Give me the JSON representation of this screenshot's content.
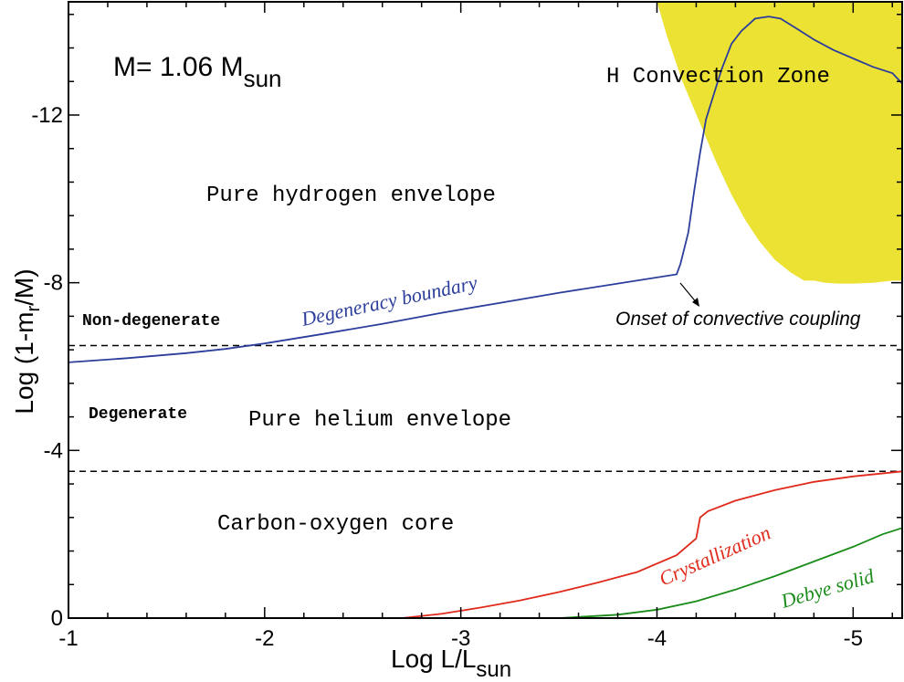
{
  "chart_data": {
    "type": "line",
    "mass_label": "M= 1.06 M",
    "mass_sub": "sun",
    "xlabel_main": "Log L/L",
    "xlabel_sub": "sun",
    "ylabel_main": "Log (1-m",
    "ylabel_sub": "r",
    "ylabel_end": "/M)",
    "xlim": [
      -1,
      -5.25
    ],
    "ylim": [
      0,
      -14.7
    ],
    "x_ticks": [
      -1,
      -2,
      -3,
      -4,
      -5
    ],
    "x_tick_labels": [
      "-1",
      "-2",
      "-3",
      "-4",
      "-5"
    ],
    "y_ticks": [
      0,
      -4,
      -8,
      -12
    ],
    "y_tick_labels": [
      "0",
      "-4",
      "-8",
      "-12"
    ],
    "colors": {
      "convection": "#ece234",
      "degeneracy": "#2c3e9c",
      "crystallization": "#e02a1c",
      "debye": "#1a8c1a",
      "reference": "#000000"
    },
    "reference_lines": [
      -6.5,
      -3.5
    ],
    "regions": {
      "convection_zone": "H Convection Zone",
      "hydrogen": "Pure hydrogen envelope",
      "helium": "Pure helium envelope",
      "core": "Carbon-oxygen core",
      "nondegenerate": "Non-degenerate",
      "degenerate": "Degenerate"
    },
    "annotations": {
      "onset": "Onset of convective coupling"
    },
    "convection_zone": {
      "upper_left": [
        [
          -4.0,
          -14.7
        ],
        [
          -4.05,
          -13.9
        ],
        [
          -4.13,
          -12.8
        ],
        [
          -4.22,
          -11.8
        ],
        [
          -4.3,
          -10.9
        ],
        [
          -4.38,
          -10.1
        ],
        [
          -4.45,
          -9.5
        ],
        [
          -4.52,
          -9.0
        ],
        [
          -4.6,
          -8.55
        ],
        [
          -4.68,
          -8.25
        ],
        [
          -4.75,
          -8.05
        ],
        [
          -4.8,
          -8.05
        ]
      ],
      "lower_boundary": [
        [
          -4.8,
          -8.05
        ],
        [
          -4.86,
          -8.0
        ],
        [
          -4.92,
          -7.98
        ],
        [
          -5.0,
          -7.98
        ],
        [
          -5.1,
          -8.0
        ],
        [
          -5.2,
          -8.05
        ],
        [
          -5.25,
          -8.05
        ]
      ]
    },
    "series": [
      {
        "name": "Degeneracy boundary",
        "points": [
          [
            -1.0,
            -6.1
          ],
          [
            -1.3,
            -6.2
          ],
          [
            -1.6,
            -6.32
          ],
          [
            -1.8,
            -6.42
          ],
          [
            -2.0,
            -6.55
          ],
          [
            -2.3,
            -6.78
          ],
          [
            -2.6,
            -7.02
          ],
          [
            -2.9,
            -7.28
          ],
          [
            -3.2,
            -7.52
          ],
          [
            -3.5,
            -7.76
          ],
          [
            -3.8,
            -7.98
          ],
          [
            -4.1,
            -8.2
          ],
          [
            -4.12,
            -8.45
          ],
          [
            -4.16,
            -9.2
          ],
          [
            -4.19,
            -10.2
          ],
          [
            -4.22,
            -11.1
          ],
          [
            -4.25,
            -11.9
          ],
          [
            -4.29,
            -12.5
          ],
          [
            -4.33,
            -13.1
          ],
          [
            -4.38,
            -13.7
          ],
          [
            -4.43,
            -14.0
          ],
          [
            -4.5,
            -14.3
          ],
          [
            -4.57,
            -14.35
          ],
          [
            -4.63,
            -14.3
          ],
          [
            -4.7,
            -14.1
          ],
          [
            -4.8,
            -13.8
          ],
          [
            -4.9,
            -13.55
          ],
          [
            -5.0,
            -13.35
          ],
          [
            -5.1,
            -13.15
          ],
          [
            -5.2,
            -13.0
          ],
          [
            -5.25,
            -12.75
          ]
        ]
      },
      {
        "name": "Crystallization",
        "points": [
          [
            -1.0,
            0.0
          ],
          [
            -2.7,
            0.0
          ],
          [
            -2.9,
            -0.1
          ],
          [
            -3.1,
            -0.25
          ],
          [
            -3.3,
            -0.42
          ],
          [
            -3.5,
            -0.62
          ],
          [
            -3.7,
            -0.85
          ],
          [
            -3.9,
            -1.1
          ],
          [
            -4.1,
            -1.5
          ],
          [
            -4.2,
            -1.9
          ],
          [
            -4.22,
            -2.4
          ],
          [
            -4.26,
            -2.55
          ],
          [
            -4.4,
            -2.8
          ],
          [
            -4.6,
            -3.05
          ],
          [
            -4.8,
            -3.25
          ],
          [
            -5.0,
            -3.38
          ],
          [
            -5.25,
            -3.5
          ]
        ]
      },
      {
        "name": "Debye solid",
        "points": [
          [
            -1.0,
            0.0
          ],
          [
            -3.5,
            0.0
          ],
          [
            -3.8,
            -0.08
          ],
          [
            -4.0,
            -0.2
          ],
          [
            -4.2,
            -0.4
          ],
          [
            -4.4,
            -0.68
          ],
          [
            -4.6,
            -1.0
          ],
          [
            -4.8,
            -1.35
          ],
          [
            -5.0,
            -1.7
          ],
          [
            -5.15,
            -2.0
          ],
          [
            -5.25,
            -2.15
          ]
        ]
      }
    ]
  }
}
